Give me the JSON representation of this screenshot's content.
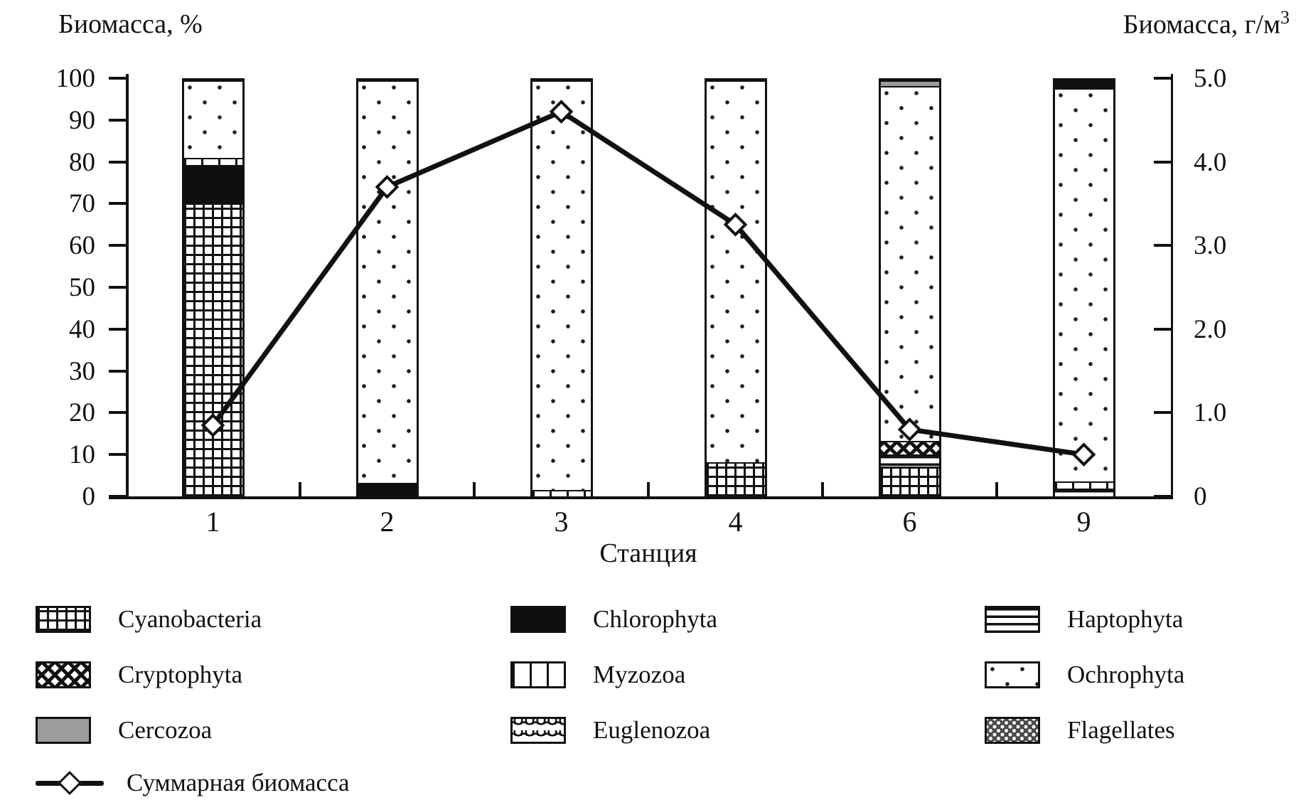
{
  "chart_data": {
    "type": "bar",
    "subtype": "stacked-percent-bars-with-line-overlay",
    "title_left": "Биомасса, %",
    "title_right_base": "Биомасса, г/м",
    "title_right_sup": "3",
    "xlabel": "Станция",
    "categories": [
      "1",
      "2",
      "3",
      "4",
      "6",
      "9"
    ],
    "left_axis": {
      "label": "Биомасса, %",
      "min": 0,
      "max": 100,
      "tick_labels": [
        "100",
        "90",
        "80",
        "70",
        "60",
        "50",
        "40",
        "30",
        "20",
        "10",
        "0"
      ]
    },
    "right_axis": {
      "label": "Биомасса, г/м3",
      "min": 0,
      "max": 5,
      "tick_labels": [
        "5.0",
        "4.0",
        "3.0",
        "2.0",
        "1.0",
        "0"
      ]
    },
    "grid": "off",
    "legend_position": "bottom",
    "bars": [
      {
        "station": "1",
        "segments": [
          {
            "taxon": "Cyanobacteria",
            "value": 71
          },
          {
            "taxon": "Chlorophyta",
            "value": 9
          },
          {
            "taxon": "Myzozoa",
            "value": 1.5
          },
          {
            "taxon": "Ochrophyta",
            "value": 18.5
          }
        ]
      },
      {
        "station": "2",
        "segments": [
          {
            "taxon": "Chlorophyta",
            "value": 3
          },
          {
            "taxon": "Ochrophyta",
            "value": 97
          }
        ]
      },
      {
        "station": "3",
        "segments": [
          {
            "taxon": "Myzozoa",
            "value": 1.2
          },
          {
            "taxon": "Ochrophyta",
            "value": 98.8
          }
        ]
      },
      {
        "station": "4",
        "segments": [
          {
            "taxon": "Cyanobacteria",
            "value": 8
          },
          {
            "taxon": "Ochrophyta",
            "value": 92
          }
        ]
      },
      {
        "station": "6",
        "segments": [
          {
            "taxon": "Cyanobacteria",
            "value": 7
          },
          {
            "taxon": "Haptophyta",
            "value": 2.5
          },
          {
            "taxon": "Cryptophyta",
            "value": 3
          },
          {
            "taxon": "Ochrophyta",
            "value": 86.5
          },
          {
            "taxon": "Cercozoa",
            "value": 1
          }
        ]
      },
      {
        "station": "9",
        "segments": [
          {
            "taxon": "Haptophyta",
            "value": 1.5
          },
          {
            "taxon": "Myzozoa",
            "value": 1.5
          },
          {
            "taxon": "Ochrophyta",
            "value": 95.5
          },
          {
            "taxon": "Chlorophyta",
            "value": 1.5
          }
        ]
      }
    ],
    "line_series": {
      "name": "Суммарная биомасса",
      "axis": "right",
      "unit": "г/м3",
      "values": [
        0.85,
        3.7,
        4.6,
        3.25,
        0.8,
        0.5
      ]
    },
    "patterns": {
      "Cyanobacteria": "grid",
      "Chlorophyta": "solid",
      "Haptophyta": "hlines",
      "Cryptophyta": "crosshatch",
      "Myzozoa": "vblocks",
      "Ochrophyta": "dots",
      "Cercozoa": "gray",
      "Euglenozoa": "waves",
      "Flagellates": "stipple"
    },
    "colors": {
      "ink": "#111111",
      "cercozoa_gray": "#9c9c9c",
      "background": "#ffffff"
    }
  },
  "legend": {
    "columns": [
      [
        {
          "label": "Cyanobacteria",
          "pattern": "grid"
        },
        {
          "label": "Cryptophyta",
          "pattern": "crosshatch"
        },
        {
          "label": "Cercozoa",
          "pattern": "gray"
        }
      ],
      [
        {
          "label": "Chlorophyta",
          "pattern": "solid"
        },
        {
          "label": "Myzozoa",
          "pattern": "vblocks"
        },
        {
          "label": "Euglenozoa",
          "pattern": "waves"
        }
      ],
      [
        {
          "label": "Haptophyta",
          "pattern": "hlines"
        },
        {
          "label": "Ochrophyta",
          "pattern": "dots"
        },
        {
          "label": "Flagellates",
          "pattern": "stipple"
        }
      ]
    ],
    "line_item": {
      "label": "Суммарная биомасса",
      "pattern": "line-diamond"
    }
  }
}
